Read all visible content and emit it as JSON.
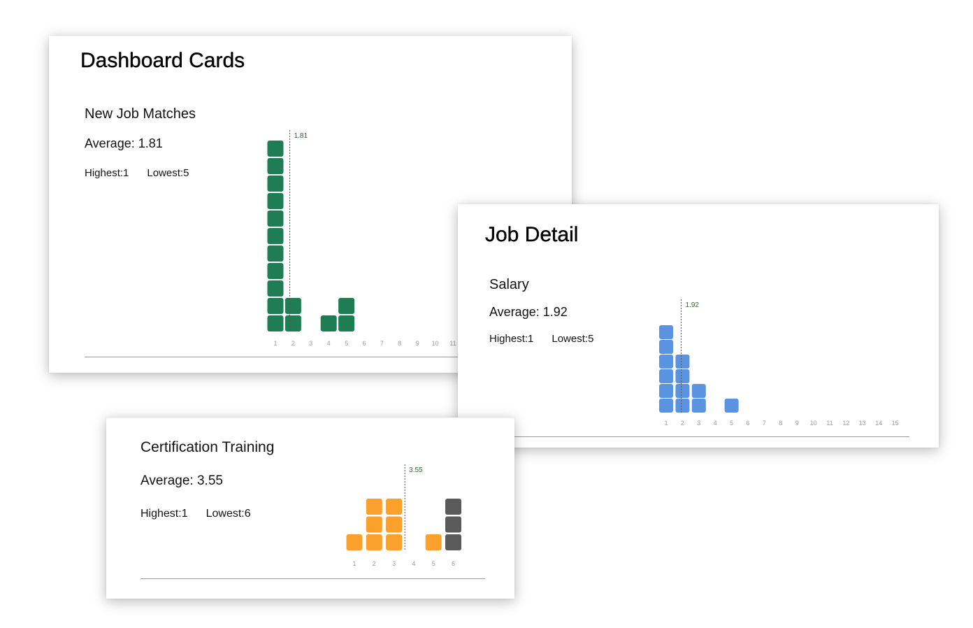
{
  "colors": {
    "green": "#1e7d52",
    "blue": "#5b93e3",
    "orange": "#f9a12c",
    "gray": "#5a5a5a"
  },
  "panels": {
    "dashboard": {
      "title": "Dashboard Cards",
      "card": {
        "title": "New Job Matches",
        "average_text": "Average: 1.81",
        "highest_text": "Highest:1",
        "lowest_text": "Lowest:5"
      }
    },
    "job_detail": {
      "title": "Job Detail",
      "card": {
        "title": "Salary",
        "average_text": "Average: 1.92",
        "highest_text": "Highest:1",
        "lowest_text": "Lowest:5"
      }
    },
    "certification": {
      "card": {
        "title": "Certification Training",
        "average_text": "Average: 3.55",
        "highest_text": "Highest:1",
        "lowest_text": "Lowest:6"
      }
    }
  },
  "chart_data": [
    {
      "type": "bar",
      "title": "New Job Matches",
      "categories": [
        "1",
        "2",
        "3",
        "4",
        "5",
        "6",
        "7",
        "8",
        "9",
        "10",
        "11"
      ],
      "values": [
        11,
        2,
        0,
        1,
        2,
        0,
        0,
        0,
        0,
        0,
        0
      ],
      "average": 1.81,
      "average_label": "1.81",
      "color": "#1e7d52"
    },
    {
      "type": "bar",
      "title": "Salary",
      "categories": [
        "1",
        "2",
        "3",
        "4",
        "5",
        "6",
        "7",
        "8",
        "9",
        "10",
        "11",
        "12",
        "13",
        "14",
        "15"
      ],
      "values": [
        6,
        4,
        2,
        0,
        1,
        0,
        0,
        0,
        0,
        0,
        0,
        0,
        0,
        0,
        0
      ],
      "average": 1.92,
      "average_label": "1.92",
      "color": "#5b93e3"
    },
    {
      "type": "bar",
      "title": "Certification Training",
      "categories": [
        "1",
        "2",
        "3",
        "4",
        "5",
        "6"
      ],
      "values": [
        1,
        3,
        3,
        0,
        1,
        3
      ],
      "average": 3.55,
      "average_label": "3.55",
      "color": "#f9a12c",
      "highlight": {
        "category": "6",
        "color": "#5a5a5a"
      }
    }
  ]
}
